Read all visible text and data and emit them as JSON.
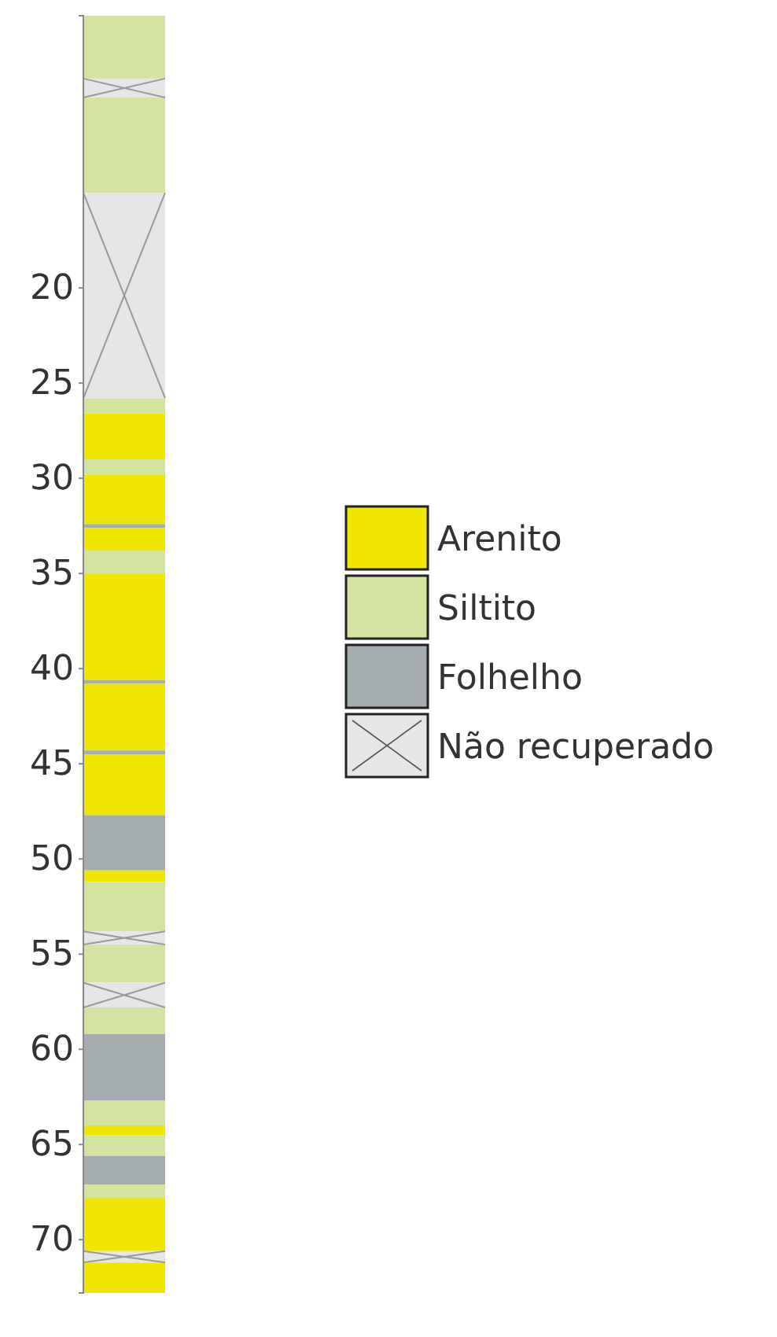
{
  "chart_data": {
    "type": "bar",
    "categories": [
      null
    ],
    "ylim": [
      72.8,
      5.7
    ],
    "yticks": [
      20,
      25,
      30,
      35,
      40,
      45,
      50,
      55,
      60,
      65,
      70
    ],
    "legend": "center",
    "series": [
      {
        "name": "Arenito",
        "color": "#f0e600",
        "base": [
          26.6
        ],
        "values": [
          2.4
        ]
      },
      {
        "name": "Siltito",
        "color": "#d2e4a0",
        "base": [
          5.7
        ],
        "values": [
          3.3
        ]
      },
      {
        "name": "Folhelho",
        "color": "#a4acb0",
        "base": [
          32.4
        ],
        "values": [
          0.2
        ]
      },
      {
        "name": "Não recuperado",
        "color": "#e6e6e6",
        "base": [
          9.0
        ],
        "values": [
          1.0
        ]
      },
      {
        "color": "#d2e4a0",
        "base": [
          10.0
        ],
        "values": [
          5.0
        ]
      },
      {
        "color": "#e6e6e6",
        "base": [
          15.0
        ],
        "values": [
          10.8
        ]
      },
      {
        "color": "#d2e4a0",
        "base": [
          25.8
        ],
        "values": [
          0.8
        ]
      },
      {
        "color": "#d2e4a0",
        "base": [
          29.0
        ],
        "values": [
          0.8
        ]
      },
      {
        "color": "#f0e600",
        "base": [
          29.8
        ],
        "values": [
          2.6
        ]
      },
      {
        "color": "#f0e600",
        "base": [
          32.6
        ],
        "values": [
          1.2
        ]
      },
      {
        "color": "#d2e4a0",
        "base": [
          33.8
        ],
        "values": [
          1.2
        ]
      },
      {
        "color": "#f0e600",
        "base": [
          35.0
        ],
        "values": [
          5.6
        ]
      },
      {
        "color": "#a4acb0",
        "base": [
          40.6
        ],
        "values": [
          0.2
        ]
      },
      {
        "color": "#f0e600",
        "base": [
          40.8
        ],
        "values": [
          3.5
        ]
      },
      {
        "color": "#a4acb0",
        "base": [
          44.3
        ],
        "values": [
          0.2
        ]
      },
      {
        "color": "#f0e600",
        "base": [
          44.5
        ],
        "values": [
          3.2
        ]
      },
      {
        "color": "#a4acb0",
        "base": [
          47.7
        ],
        "values": [
          2.9
        ]
      },
      {
        "color": "#f0e600",
        "base": [
          50.6
        ],
        "values": [
          0.6
        ]
      },
      {
        "color": "#d2e4a0",
        "base": [
          51.2
        ],
        "values": [
          2.6
        ]
      },
      {
        "color": "#e6e6e6",
        "base": [
          53.8
        ],
        "values": [
          0.7
        ]
      },
      {
        "color": "#d2e4a0",
        "base": [
          54.5
        ],
        "values": [
          2.0
        ]
      },
      {
        "color": "#e6e6e6",
        "base": [
          56.5
        ],
        "values": [
          1.3
        ]
      },
      {
        "color": "#d2e4a0",
        "base": [
          57.8
        ],
        "values": [
          1.4
        ]
      },
      {
        "color": "#a4acb0",
        "base": [
          59.2
        ],
        "values": [
          3.5
        ]
      },
      {
        "color": "#d2e4a0",
        "base": [
          62.7
        ],
        "values": [
          1.3
        ]
      },
      {
        "color": "#f0e600",
        "base": [
          64.0
        ],
        "values": [
          0.5
        ]
      },
      {
        "color": "#d2e4a0",
        "base": [
          64.5
        ],
        "values": [
          1.1
        ]
      },
      {
        "color": "#a4acb0",
        "base": [
          65.6
        ],
        "values": [
          1.5
        ]
      },
      {
        "color": "#d2e4a0",
        "base": [
          67.1
        ],
        "values": [
          0.7
        ]
      },
      {
        "color": "#f0e600",
        "base": [
          67.8
        ],
        "values": [
          2.8
        ]
      },
      {
        "color": "#e6e6e6",
        "base": [
          70.6
        ],
        "values": [
          0.6
        ]
      },
      {
        "color": "#f0e600",
        "base": [
          71.2
        ],
        "values": [
          1.6
        ]
      }
    ]
  }
}
